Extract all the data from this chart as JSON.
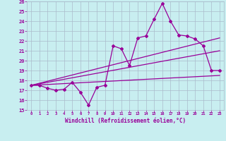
{
  "xlabel": "Windchill (Refroidissement éolien,°C)",
  "ylim": [
    15,
    26
  ],
  "xlim": [
    -0.5,
    23.5
  ],
  "yticks": [
    15,
    16,
    17,
    18,
    19,
    20,
    21,
    22,
    23,
    24,
    25,
    26
  ],
  "xticks": [
    0,
    1,
    2,
    3,
    4,
    5,
    6,
    7,
    8,
    9,
    10,
    11,
    12,
    13,
    14,
    15,
    16,
    17,
    18,
    19,
    20,
    21,
    22,
    23
  ],
  "bg_color": "#c8eef0",
  "line_color": "#990099",
  "grid_color": "#aabbcc",
  "series": [
    17.5,
    17.5,
    17.2,
    17.0,
    17.1,
    17.8,
    16.8,
    15.5,
    17.3,
    17.5,
    21.5,
    21.2,
    19.5,
    22.3,
    22.5,
    24.2,
    25.8,
    24.0,
    22.6,
    22.5,
    22.2,
    21.5,
    19.0,
    19.0
  ],
  "trend1_x": [
    0,
    23
  ],
  "trend1_y": [
    17.5,
    18.5
  ],
  "trend2_x": [
    0,
    23
  ],
  "trend2_y": [
    17.5,
    22.3
  ],
  "trend3_x": [
    0,
    23
  ],
  "trend3_y": [
    17.5,
    21.0
  ]
}
